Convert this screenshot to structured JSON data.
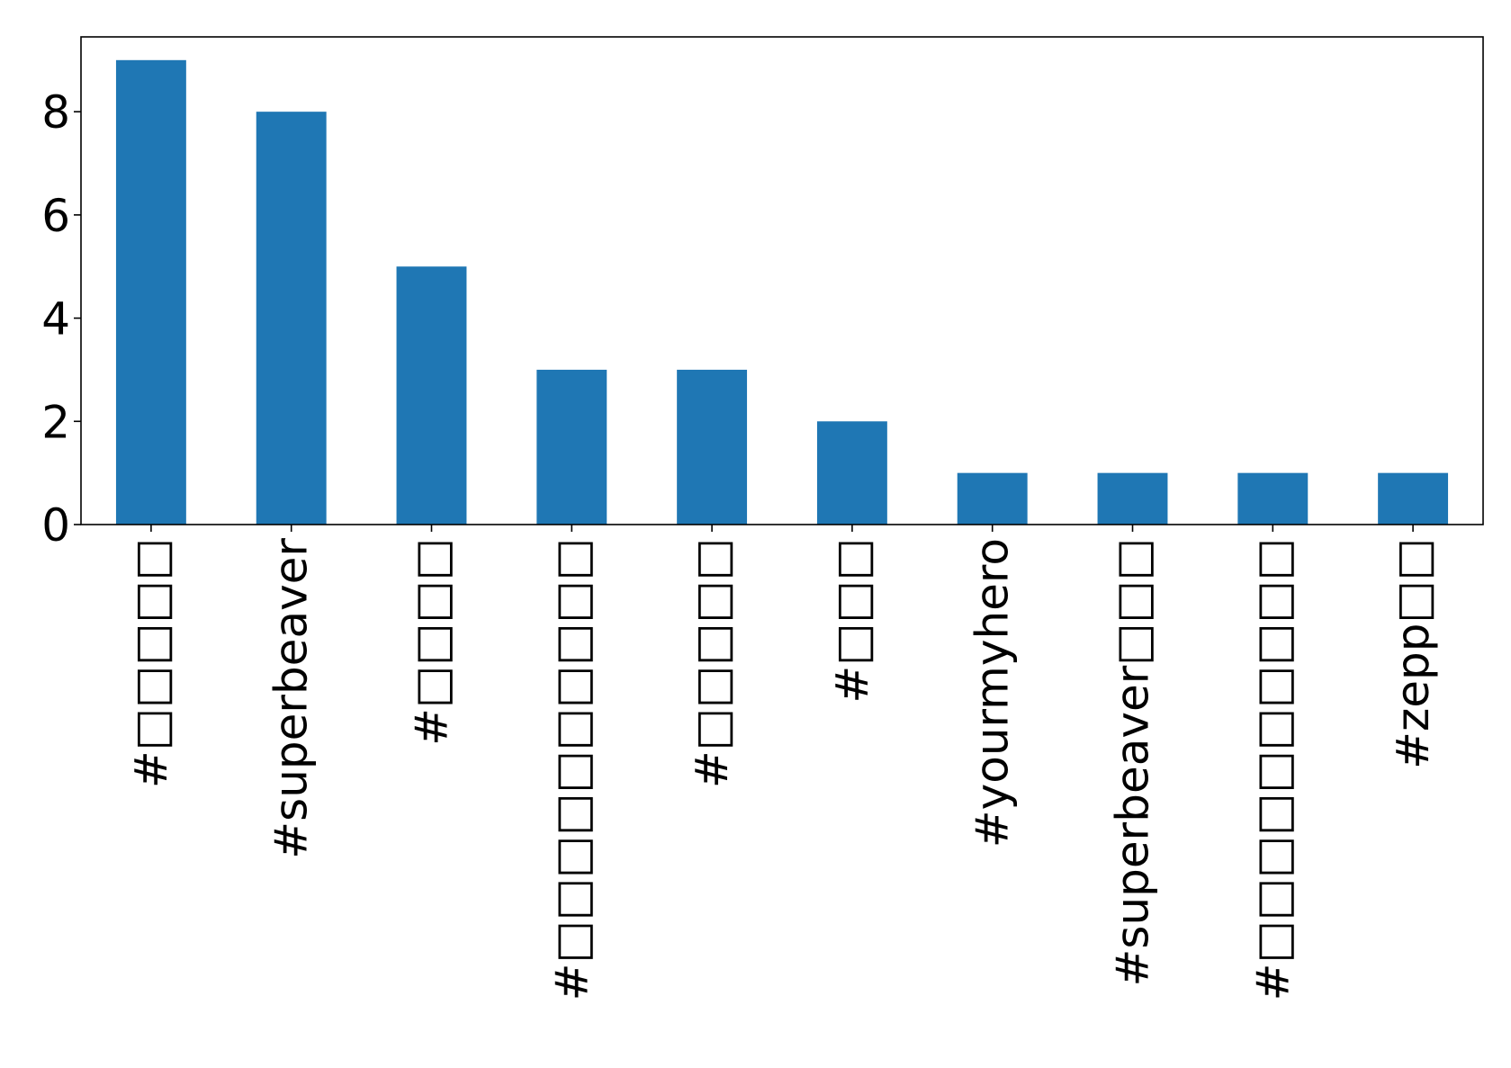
{
  "chart_data": {
    "type": "bar",
    "title": "",
    "xlabel": "",
    "ylabel": "",
    "categories": [
      "#□□□□□",
      "#superbeaver",
      "#□□□□",
      "#□□□□□□□□□□",
      "#□□□□□",
      "#□□□",
      "#yourmyhero",
      "#superbeaver□□□",
      "#□□□□□□□□□□",
      "#zepp□□"
    ],
    "values": [
      9,
      8,
      5,
      3,
      3,
      2,
      1,
      1,
      1,
      1
    ],
    "ylim": [
      0,
      9.45
    ],
    "yticks": [
      0,
      2,
      4,
      6,
      8
    ],
    "ytick_labels": [
      "0",
      "2",
      "4",
      "6",
      "8"
    ],
    "bar_color": "#1f77b4",
    "grid": false,
    "legend": "none"
  }
}
